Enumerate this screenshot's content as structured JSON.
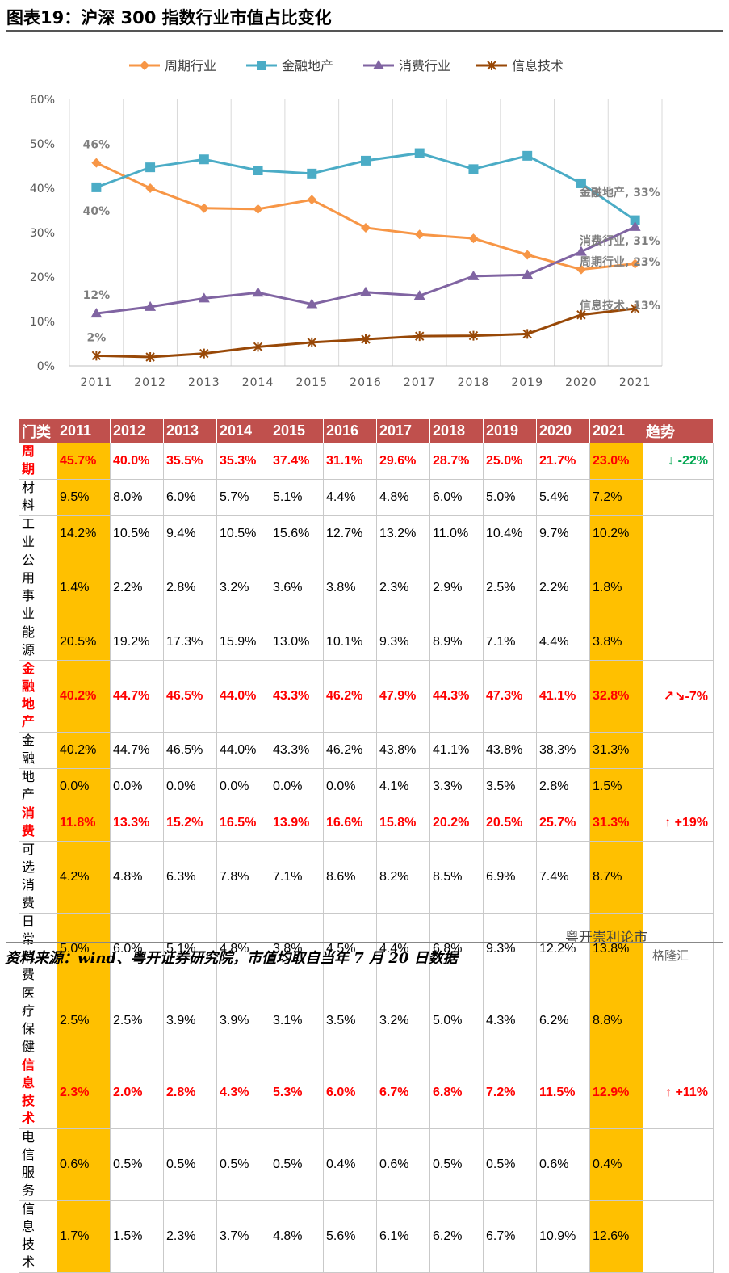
{
  "header": {
    "title": "图表19：沪深 300 指数行业市值占比变化"
  },
  "chart_data": {
    "type": "line",
    "x": [
      "2011",
      "2012",
      "2013",
      "2014",
      "2015",
      "2016",
      "2017",
      "2018",
      "2019",
      "2020",
      "2021"
    ],
    "y_ticks": [
      "0%",
      "10%",
      "20%",
      "30%",
      "40%",
      "50%",
      "60%"
    ],
    "ylim": [
      0,
      60
    ],
    "grid": "vertical",
    "legend": "top",
    "series": [
      {
        "name": "周期行业",
        "color": "#f79646",
        "marker": "diamond",
        "values": [
          45.7,
          40.0,
          35.5,
          35.3,
          37.4,
          31.1,
          29.6,
          28.7,
          25.0,
          21.7,
          23.0
        ]
      },
      {
        "name": "金融地产",
        "color": "#4bacc6",
        "marker": "square",
        "values": [
          40.2,
          44.7,
          46.5,
          44.0,
          43.3,
          46.2,
          47.9,
          44.3,
          47.3,
          41.1,
          32.8
        ]
      },
      {
        "name": "消费行业",
        "color": "#8064a2",
        "marker": "triangle",
        "values": [
          11.8,
          13.3,
          15.2,
          16.5,
          13.9,
          16.6,
          15.8,
          20.2,
          20.5,
          25.7,
          31.3
        ]
      },
      {
        "name": "信息技术",
        "color": "#984807",
        "marker": "star",
        "values": [
          2.3,
          2.0,
          2.8,
          4.3,
          5.3,
          6.0,
          6.7,
          6.8,
          7.2,
          11.5,
          12.9
        ]
      }
    ],
    "start_labels": [
      {
        "text": "46%",
        "series": 0,
        "value": 45.7,
        "pos": "above"
      },
      {
        "text": "40%",
        "series": 1,
        "value": 40.2,
        "pos": "below"
      },
      {
        "text": "12%",
        "series": 2,
        "value": 11.8,
        "pos": "above"
      },
      {
        "text": "2%",
        "series": 3,
        "value": 2.3,
        "pos": "above"
      }
    ],
    "end_labels": [
      {
        "text": "金融地产, 33%",
        "series": 1,
        "value": 32.8
      },
      {
        "text": "消费行业, 31%",
        "series": 2,
        "value": 31.3
      },
      {
        "text": "周期行业, 23%",
        "series": 0,
        "value": 23.0
      },
      {
        "text": "信息技术, 13%",
        "series": 3,
        "value": 12.9
      }
    ]
  },
  "table": {
    "headers": [
      "门类",
      "2011",
      "2012",
      "2013",
      "2014",
      "2015",
      "2016",
      "2017",
      "2018",
      "2019",
      "2020",
      "2021",
      "趋势"
    ],
    "rows": [
      {
        "name": "周期",
        "hl": true,
        "h": 29,
        "vals": [
          "45.7%",
          "40.0%",
          "35.5%",
          "35.3%",
          "37.4%",
          "31.1%",
          "29.6%",
          "28.7%",
          "25.0%",
          "21.7%",
          "23.0%"
        ],
        "trend": "↓ -22%",
        "trend_color": "#00a650"
      },
      {
        "name": "材料",
        "hl": false,
        "h": 29,
        "vals": [
          "9.5%",
          "8.0%",
          "6.0%",
          "5.7%",
          "5.1%",
          "4.4%",
          "4.8%",
          "6.0%",
          "5.0%",
          "5.4%",
          "7.2%"
        ],
        "trend": ""
      },
      {
        "name": "工业",
        "hl": false,
        "h": 29,
        "vals": [
          "14.2%",
          "10.5%",
          "9.4%",
          "10.5%",
          "15.6%",
          "12.7%",
          "13.2%",
          "11.0%",
          "10.4%",
          "9.7%",
          "10.2%"
        ],
        "trend": ""
      },
      {
        "name": "公用事业",
        "hl": false,
        "h": 48,
        "vals": [
          "1.4%",
          "2.2%",
          "2.8%",
          "3.2%",
          "3.6%",
          "3.8%",
          "2.3%",
          "2.9%",
          "2.5%",
          "2.2%",
          "1.8%"
        ],
        "trend": ""
      },
      {
        "name": "能源",
        "hl": false,
        "h": 29,
        "vals": [
          "20.5%",
          "19.2%",
          "17.3%",
          "15.9%",
          "13.0%",
          "10.1%",
          "9.3%",
          "8.9%",
          "7.1%",
          "4.4%",
          "3.8%"
        ],
        "trend": ""
      },
      {
        "name": "金融地产",
        "hl": true,
        "h": 48,
        "vals": [
          "40.2%",
          "44.7%",
          "46.5%",
          "44.0%",
          "43.3%",
          "46.2%",
          "47.9%",
          "44.3%",
          "47.3%",
          "41.1%",
          "32.8%"
        ],
        "trend": "↗↘-7%",
        "trend_color": "#ff0000"
      },
      {
        "name": "金融",
        "hl": false,
        "h": 29,
        "vals": [
          "40.2%",
          "44.7%",
          "46.5%",
          "44.0%",
          "43.3%",
          "46.2%",
          "43.8%",
          "41.1%",
          "43.8%",
          "38.3%",
          "31.3%"
        ],
        "trend": ""
      },
      {
        "name": "地产",
        "hl": false,
        "h": 29,
        "vals": [
          "0.0%",
          "0.0%",
          "0.0%",
          "0.0%",
          "0.0%",
          "0.0%",
          "4.1%",
          "3.3%",
          "3.5%",
          "2.8%",
          "1.5%"
        ],
        "trend": ""
      },
      {
        "name": "消费",
        "hl": true,
        "h": 29,
        "vals": [
          "11.8%",
          "13.3%",
          "15.2%",
          "16.5%",
          "13.9%",
          "16.6%",
          "15.8%",
          "20.2%",
          "20.5%",
          "25.7%",
          "31.3%"
        ],
        "trend": "↑ +19%",
        "trend_color": "#ff0000"
      },
      {
        "name": "可选消费",
        "hl": false,
        "h": 46,
        "vals": [
          "4.2%",
          "4.8%",
          "6.3%",
          "7.8%",
          "7.1%",
          "8.6%",
          "8.2%",
          "8.5%",
          "6.9%",
          "7.4%",
          "8.7%"
        ],
        "trend": ""
      },
      {
        "name": "日常消费",
        "hl": false,
        "h": 48,
        "vals": [
          "5.0%",
          "6.0%",
          "5.1%",
          "4.8%",
          "3.8%",
          "4.5%",
          "4.4%",
          "6.8%",
          "9.3%",
          "12.2%",
          "13.8%"
        ],
        "trend": ""
      },
      {
        "name": "医疗保健",
        "hl": false,
        "h": 46,
        "vals": [
          "2.5%",
          "2.5%",
          "3.9%",
          "3.9%",
          "3.1%",
          "3.5%",
          "3.2%",
          "5.0%",
          "4.3%",
          "6.2%",
          "8.8%"
        ],
        "trend": ""
      },
      {
        "name": "信息技术",
        "hl": true,
        "h": 52,
        "vals": [
          "2.3%",
          "2.0%",
          "2.8%",
          "4.3%",
          "5.3%",
          "6.0%",
          "6.7%",
          "6.8%",
          "7.2%",
          "11.5%",
          "12.9%"
        ],
        "trend": "↑ +11%",
        "trend_color": "#ff0000"
      },
      {
        "name": "电信服务",
        "hl": false,
        "h": 48,
        "vals": [
          "0.6%",
          "0.5%",
          "0.5%",
          "0.5%",
          "0.5%",
          "0.4%",
          "0.6%",
          "0.5%",
          "0.5%",
          "0.6%",
          "0.4%"
        ],
        "trend": ""
      },
      {
        "name": "信息技术",
        "hl": false,
        "h": 52,
        "vals": [
          "1.7%",
          "1.5%",
          "2.3%",
          "3.7%",
          "4.8%",
          "5.6%",
          "6.1%",
          "6.2%",
          "6.7%",
          "10.9%",
          "12.6%"
        ],
        "trend": ""
      }
    ]
  },
  "footer": {
    "source": "资料来源：wind、粤开证券研究院，市值均取自当年 7 月 20 日数据"
  },
  "watermark": {
    "account": "粤开崇利论市",
    "brand": "格隆汇"
  }
}
